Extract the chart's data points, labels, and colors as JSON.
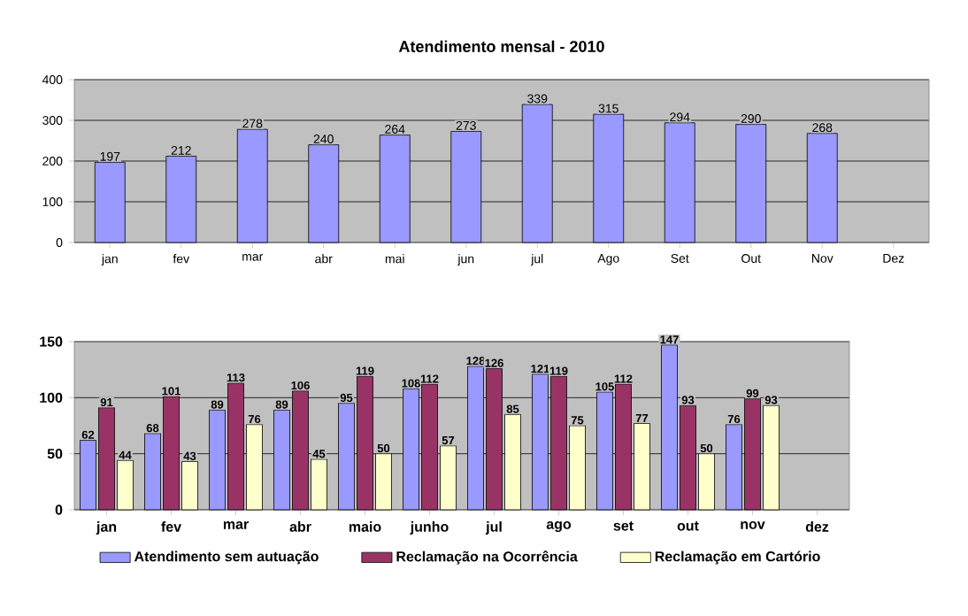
{
  "chart_data": [
    {
      "type": "bar",
      "title": "Atendimento mensal - 2010",
      "categories": [
        "jan",
        "fev",
        "mar",
        "abr",
        "mai",
        "jun",
        "jul",
        "Ago",
        "Set",
        "Out",
        "Nov",
        "Dez"
      ],
      "values": [
        197,
        212,
        278,
        240,
        264,
        273,
        339,
        315,
        294,
        290,
        268,
        null
      ],
      "color": "#9999ff",
      "ylim": [
        0,
        400
      ],
      "yticks": [
        0,
        100,
        200,
        300,
        400
      ],
      "grid": "y",
      "data_labels": true
    },
    {
      "type": "bar",
      "categories": [
        "jan",
        "fev",
        "mar",
        "abr",
        "maio",
        "junho",
        "jul",
        "ago",
        "set",
        "out",
        "nov",
        "dez"
      ],
      "series": [
        {
          "name": "Atendimento sem autuação",
          "color": "#9999ff",
          "values": [
            62,
            68,
            89,
            89,
            95,
            108,
            128,
            121,
            105,
            147,
            76,
            null
          ]
        },
        {
          "name": "Reclamação na Ocorrência",
          "color": "#993366",
          "values": [
            91,
            101,
            113,
            106,
            119,
            112,
            126,
            119,
            112,
            93,
            99,
            null
          ]
        },
        {
          "name": "Reclamação em Cartório",
          "color": "#ffffcc",
          "values": [
            44,
            43,
            76,
            45,
            50,
            57,
            85,
            75,
            77,
            50,
            93,
            null
          ]
        }
      ],
      "ylim": [
        0,
        150
      ],
      "yticks": [
        0,
        50,
        100,
        150
      ],
      "grid": "y",
      "legend": "bottom",
      "data_labels": true
    }
  ]
}
